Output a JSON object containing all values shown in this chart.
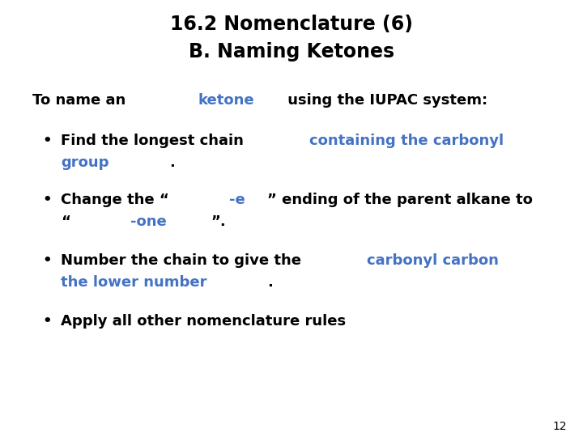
{
  "title_line1": "16.2 Nomenclature (6)",
  "title_line2": "B. Naming Ketones",
  "background_color": "#ffffff",
  "title_color": "#000000",
  "body_color": "#000000",
  "blue_color": "#4472C4",
  "title_fontsize": 17,
  "body_fontsize": 13,
  "small_fontsize": 10,
  "page_number": "12",
  "intro": [
    {
      "text": "To name an ",
      "color": "#000000"
    },
    {
      "text": "ketone",
      "color": "#4472C4"
    },
    {
      "text": " using the IUPAC system:",
      "color": "#000000"
    }
  ],
  "bullets": [
    {
      "line1": [
        {
          "text": "Find the longest chain ",
          "color": "#000000"
        },
        {
          "text": "containing the carbonyl",
          "color": "#4472C4"
        }
      ],
      "line2": [
        {
          "text": "group",
          "color": "#4472C4"
        },
        {
          "text": ".",
          "color": "#000000"
        }
      ]
    },
    {
      "line1": [
        {
          "text": "Change the “",
          "color": "#000000"
        },
        {
          "text": "-e",
          "color": "#4472C4"
        },
        {
          "text": "” ending of the parent alkane to",
          "color": "#000000"
        }
      ],
      "line2": [
        {
          "text": "“",
          "color": "#000000"
        },
        {
          "text": "-one",
          "color": "#4472C4"
        },
        {
          "text": "”.",
          "color": "#000000"
        }
      ]
    },
    {
      "line1": [
        {
          "text": "Number the chain to give the ",
          "color": "#000000"
        },
        {
          "text": "carbonyl carbon",
          "color": "#4472C4"
        }
      ],
      "line2": [
        {
          "text": "the lower number",
          "color": "#4472C4"
        },
        {
          "text": ".",
          "color": "#000000"
        }
      ]
    },
    {
      "line1": [
        {
          "text": "Apply all other nomenclature rules",
          "color": "#000000"
        }
      ],
      "line2": []
    }
  ]
}
